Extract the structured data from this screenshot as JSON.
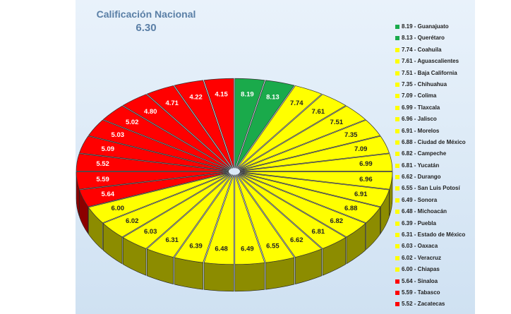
{
  "chart_data": {
    "type": "pie",
    "title": "Calificación Nacional",
    "subtitle": "6.30",
    "slices": [
      {
        "label": "Guanajuato",
        "value": 8.19,
        "color": "#1aaa4b"
      },
      {
        "label": "Querétaro",
        "value": 8.13,
        "color": "#1aaa4b"
      },
      {
        "label": "Coahuila",
        "value": 7.74,
        "color": "#ffff00"
      },
      {
        "label": "Aguascalientes",
        "value": 7.61,
        "color": "#ffff00"
      },
      {
        "label": "Baja California",
        "value": 7.51,
        "color": "#ffff00"
      },
      {
        "label": "Chihuahua",
        "value": 7.35,
        "color": "#ffff00"
      },
      {
        "label": "Colima",
        "value": 7.09,
        "color": "#ffff00"
      },
      {
        "label": "Tlaxcala",
        "value": 6.99,
        "color": "#ffff00"
      },
      {
        "label": "Jalisco",
        "value": 6.96,
        "color": "#ffff00"
      },
      {
        "label": "Morelos",
        "value": 6.91,
        "color": "#ffff00"
      },
      {
        "label": "Ciudad de México",
        "value": 6.88,
        "color": "#ffff00"
      },
      {
        "label": "Campeche",
        "value": 6.82,
        "color": "#ffff00"
      },
      {
        "label": "Yucatán",
        "value": 6.81,
        "color": "#ffff00"
      },
      {
        "label": "Durango",
        "value": 6.62,
        "color": "#ffff00"
      },
      {
        "label": "San Luis Potosí",
        "value": 6.55,
        "color": "#ffff00"
      },
      {
        "label": "Sonora",
        "value": 6.49,
        "color": "#ffff00"
      },
      {
        "label": "Michoacán",
        "value": 6.48,
        "color": "#ffff00"
      },
      {
        "label": "Puebla",
        "value": 6.39,
        "color": "#ffff00"
      },
      {
        "label": "Estado de México",
        "value": 6.31,
        "color": "#ffff00"
      },
      {
        "label": "Oaxaca",
        "value": 6.03,
        "color": "#ffff00"
      },
      {
        "label": "Veracruz",
        "value": 6.02,
        "color": "#ffff00"
      },
      {
        "label": "Chiapas",
        "value": 6.0,
        "color": "#ffff00"
      },
      {
        "label": "Sinaloa",
        "value": 5.64,
        "color": "#ff0000"
      },
      {
        "label": "Tabasco",
        "value": 5.59,
        "color": "#ff0000"
      },
      {
        "label": "Zacatecas",
        "value": 5.52,
        "color": "#ff0000"
      },
      {
        "label": "",
        "value": 5.09,
        "color": "#ff0000"
      },
      {
        "label": "",
        "value": 5.03,
        "color": "#ff0000"
      },
      {
        "label": "",
        "value": 5.02,
        "color": "#ff0000"
      },
      {
        "label": "",
        "value": 4.8,
        "color": "#ff0000"
      },
      {
        "label": "",
        "value": 4.71,
        "color": "#ff0000"
      },
      {
        "label": "",
        "value": 4.22,
        "color": "#ff0000"
      },
      {
        "label": "",
        "value": 4.15,
        "color": "#ff0000"
      }
    ],
    "legend": [
      "8.19 - Guanajuato",
      "8.13 - Querétaro",
      "7.74 - Coahuila",
      "7.61 - Aguascalientes",
      "7.51 - Baja California",
      "7.35 - Chihuahua",
      "7.09 - Colima",
      "6.99 - Tlaxcala",
      "6.96 - Jalisco",
      "6.91 - Morelos",
      "6.88 - Ciudad de México",
      "6.82 - Campeche",
      "6.81 - Yucatán",
      "6.62 - Durango",
      "6.55 - San Luis Potosí",
      "6.49 - Sonora",
      "6.48 - Michoacán",
      "6.39 - Puebla",
      "6.31 - Estado de México",
      "6.03 - Oaxaca",
      "6.02 - Veracruz",
      "6.00 - Chiapas",
      "5.64 - Sinaloa",
      "5.59 - Tabasco",
      "5.52 - Zacatecas"
    ],
    "legend_position": "right",
    "style": "3d-exploded"
  }
}
